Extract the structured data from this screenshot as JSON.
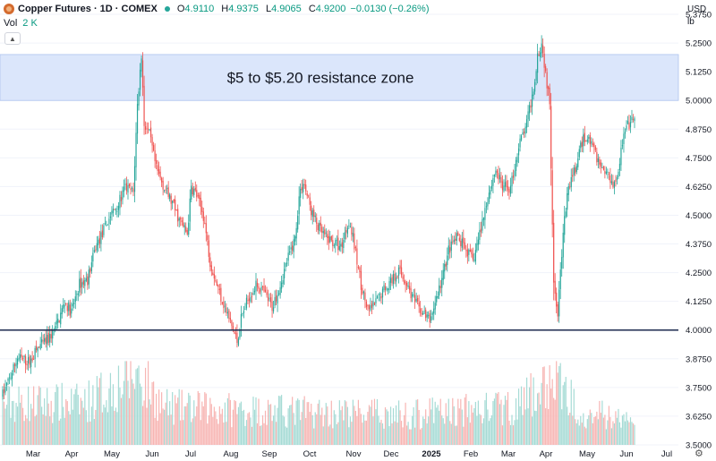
{
  "header": {
    "title": "Copper Futures · 1D · COMEX",
    "ohlc": [
      {
        "k": "O",
        "v": "4.9110"
      },
      {
        "k": "H",
        "v": "4.9375"
      },
      {
        "k": "L",
        "v": "4.9065"
      },
      {
        "k": "C",
        "v": "4.9200"
      }
    ],
    "change": "−0.0130 (−0.26%)",
    "vol_label": "Vol",
    "vol_value": "2 K",
    "icons": {
      "symbol": "copper-symbol-icon",
      "live": "market-open-dot-icon",
      "collapse": "chevron-up-icon",
      "settings": "gear-icon"
    }
  },
  "currency": "USD",
  "unit": "lb",
  "logo": "17",
  "colors": {
    "up": "#26a69a",
    "down": "#ef5350",
    "zone": "#dbe6fb",
    "zone_border": "#aec4ef",
    "support": "#1c2a4f"
  },
  "chart_data": {
    "type": "candlestick",
    "ylim": [
      3.5,
      5.4375
    ],
    "y_ticks": [
      "5.3750",
      "5.2500",
      "5.1250",
      "5.0000",
      "4.8750",
      "4.7500",
      "4.6250",
      "4.5000",
      "4.3750",
      "4.2500",
      "4.1250",
      "4.0000",
      "3.8750",
      "3.7500",
      "3.6250",
      "3.5000"
    ],
    "x_ticks": [
      "Mar",
      "Apr",
      "May",
      "Jun",
      "Jul",
      "Aug",
      "Sep",
      "Oct",
      "Nov",
      "Dec",
      "2025",
      "Feb",
      "Mar",
      "Apr",
      "May",
      "Jun",
      "Jul"
    ],
    "price_path": [
      [
        0,
        3.72
      ],
      [
        6,
        3.8
      ],
      [
        11,
        3.88
      ],
      [
        20,
        3.86
      ],
      [
        26,
        3.92
      ],
      [
        34,
        3.96
      ],
      [
        40,
        4.02
      ],
      [
        46,
        4.12
      ],
      [
        51,
        4.08
      ],
      [
        57,
        4.2
      ],
      [
        63,
        4.22
      ],
      [
        69,
        4.36
      ],
      [
        74,
        4.42
      ],
      [
        80,
        4.5
      ],
      [
        86,
        4.55
      ],
      [
        91,
        4.62
      ],
      [
        97,
        4.6
      ],
      [
        100,
        4.98
      ],
      [
        103,
        5.2
      ],
      [
        105,
        4.9
      ],
      [
        109,
        4.85
      ],
      [
        114,
        4.7
      ],
      [
        120,
        4.62
      ],
      [
        126,
        4.55
      ],
      [
        131,
        4.48
      ],
      [
        137,
        4.42
      ],
      [
        140,
        4.62
      ],
      [
        143,
        4.6
      ],
      [
        149,
        4.5
      ],
      [
        154,
        4.3
      ],
      [
        160,
        4.18
      ],
      [
        166,
        4.08
      ],
      [
        171,
        4.0
      ],
      [
        174,
        3.95
      ],
      [
        177,
        4.05
      ],
      [
        183,
        4.15
      ],
      [
        189,
        4.2
      ],
      [
        194,
        4.16
      ],
      [
        200,
        4.1
      ],
      [
        206,
        4.2
      ],
      [
        211,
        4.3
      ],
      [
        217,
        4.4
      ],
      [
        220,
        4.58
      ],
      [
        223,
        4.65
      ],
      [
        229,
        4.52
      ],
      [
        234,
        4.45
      ],
      [
        240,
        4.4
      ],
      [
        246,
        4.38
      ],
      [
        251,
        4.36
      ],
      [
        257,
        4.48
      ],
      [
        260,
        4.4
      ],
      [
        266,
        4.2
      ],
      [
        271,
        4.08
      ],
      [
        277,
        4.12
      ],
      [
        283,
        4.18
      ],
      [
        289,
        4.22
      ],
      [
        294,
        4.26
      ],
      [
        300,
        4.2
      ],
      [
        306,
        4.12
      ],
      [
        311,
        4.08
      ],
      [
        317,
        4.04
      ],
      [
        320,
        4.1
      ],
      [
        326,
        4.22
      ],
      [
        331,
        4.35
      ],
      [
        337,
        4.4
      ],
      [
        343,
        4.36
      ],
      [
        349,
        4.3
      ],
      [
        354,
        4.42
      ],
      [
        360,
        4.58
      ],
      [
        366,
        4.7
      ],
      [
        371,
        4.62
      ],
      [
        377,
        4.62
      ],
      [
        383,
        4.8
      ],
      [
        389,
        4.9
      ],
      [
        394,
        5.05
      ],
      [
        397,
        5.2
      ],
      [
        400,
        5.25
      ],
      [
        403,
        5.12
      ],
      [
        406,
        4.98
      ],
      [
        409,
        4.22
      ],
      [
        412,
        4.08
      ],
      [
        414,
        4.26
      ],
      [
        417,
        4.48
      ],
      [
        420,
        4.62
      ],
      [
        426,
        4.72
      ],
      [
        431,
        4.84
      ],
      [
        437,
        4.82
      ],
      [
        443,
        4.72
      ],
      [
        449,
        4.68
      ],
      [
        454,
        4.64
      ],
      [
        457,
        4.7
      ],
      [
        460,
        4.82
      ],
      [
        463,
        4.88
      ],
      [
        466,
        4.9
      ],
      [
        469,
        4.92
      ]
    ],
    "volume_path": [
      [
        0,
        0.55
      ],
      [
        60,
        0.55
      ],
      [
        100,
        0.95
      ],
      [
        120,
        0.5
      ],
      [
        200,
        0.45
      ],
      [
        300,
        0.4
      ],
      [
        380,
        0.5
      ],
      [
        410,
        0.85
      ],
      [
        430,
        0.45
      ],
      [
        469,
        0.3
      ]
    ],
    "annotations": [
      {
        "type": "zone",
        "y_from": 5.0,
        "y_to": 5.2,
        "label": "$5 to $5.20 resistance zone"
      },
      {
        "type": "hline",
        "y": 4.0
      }
    ]
  }
}
